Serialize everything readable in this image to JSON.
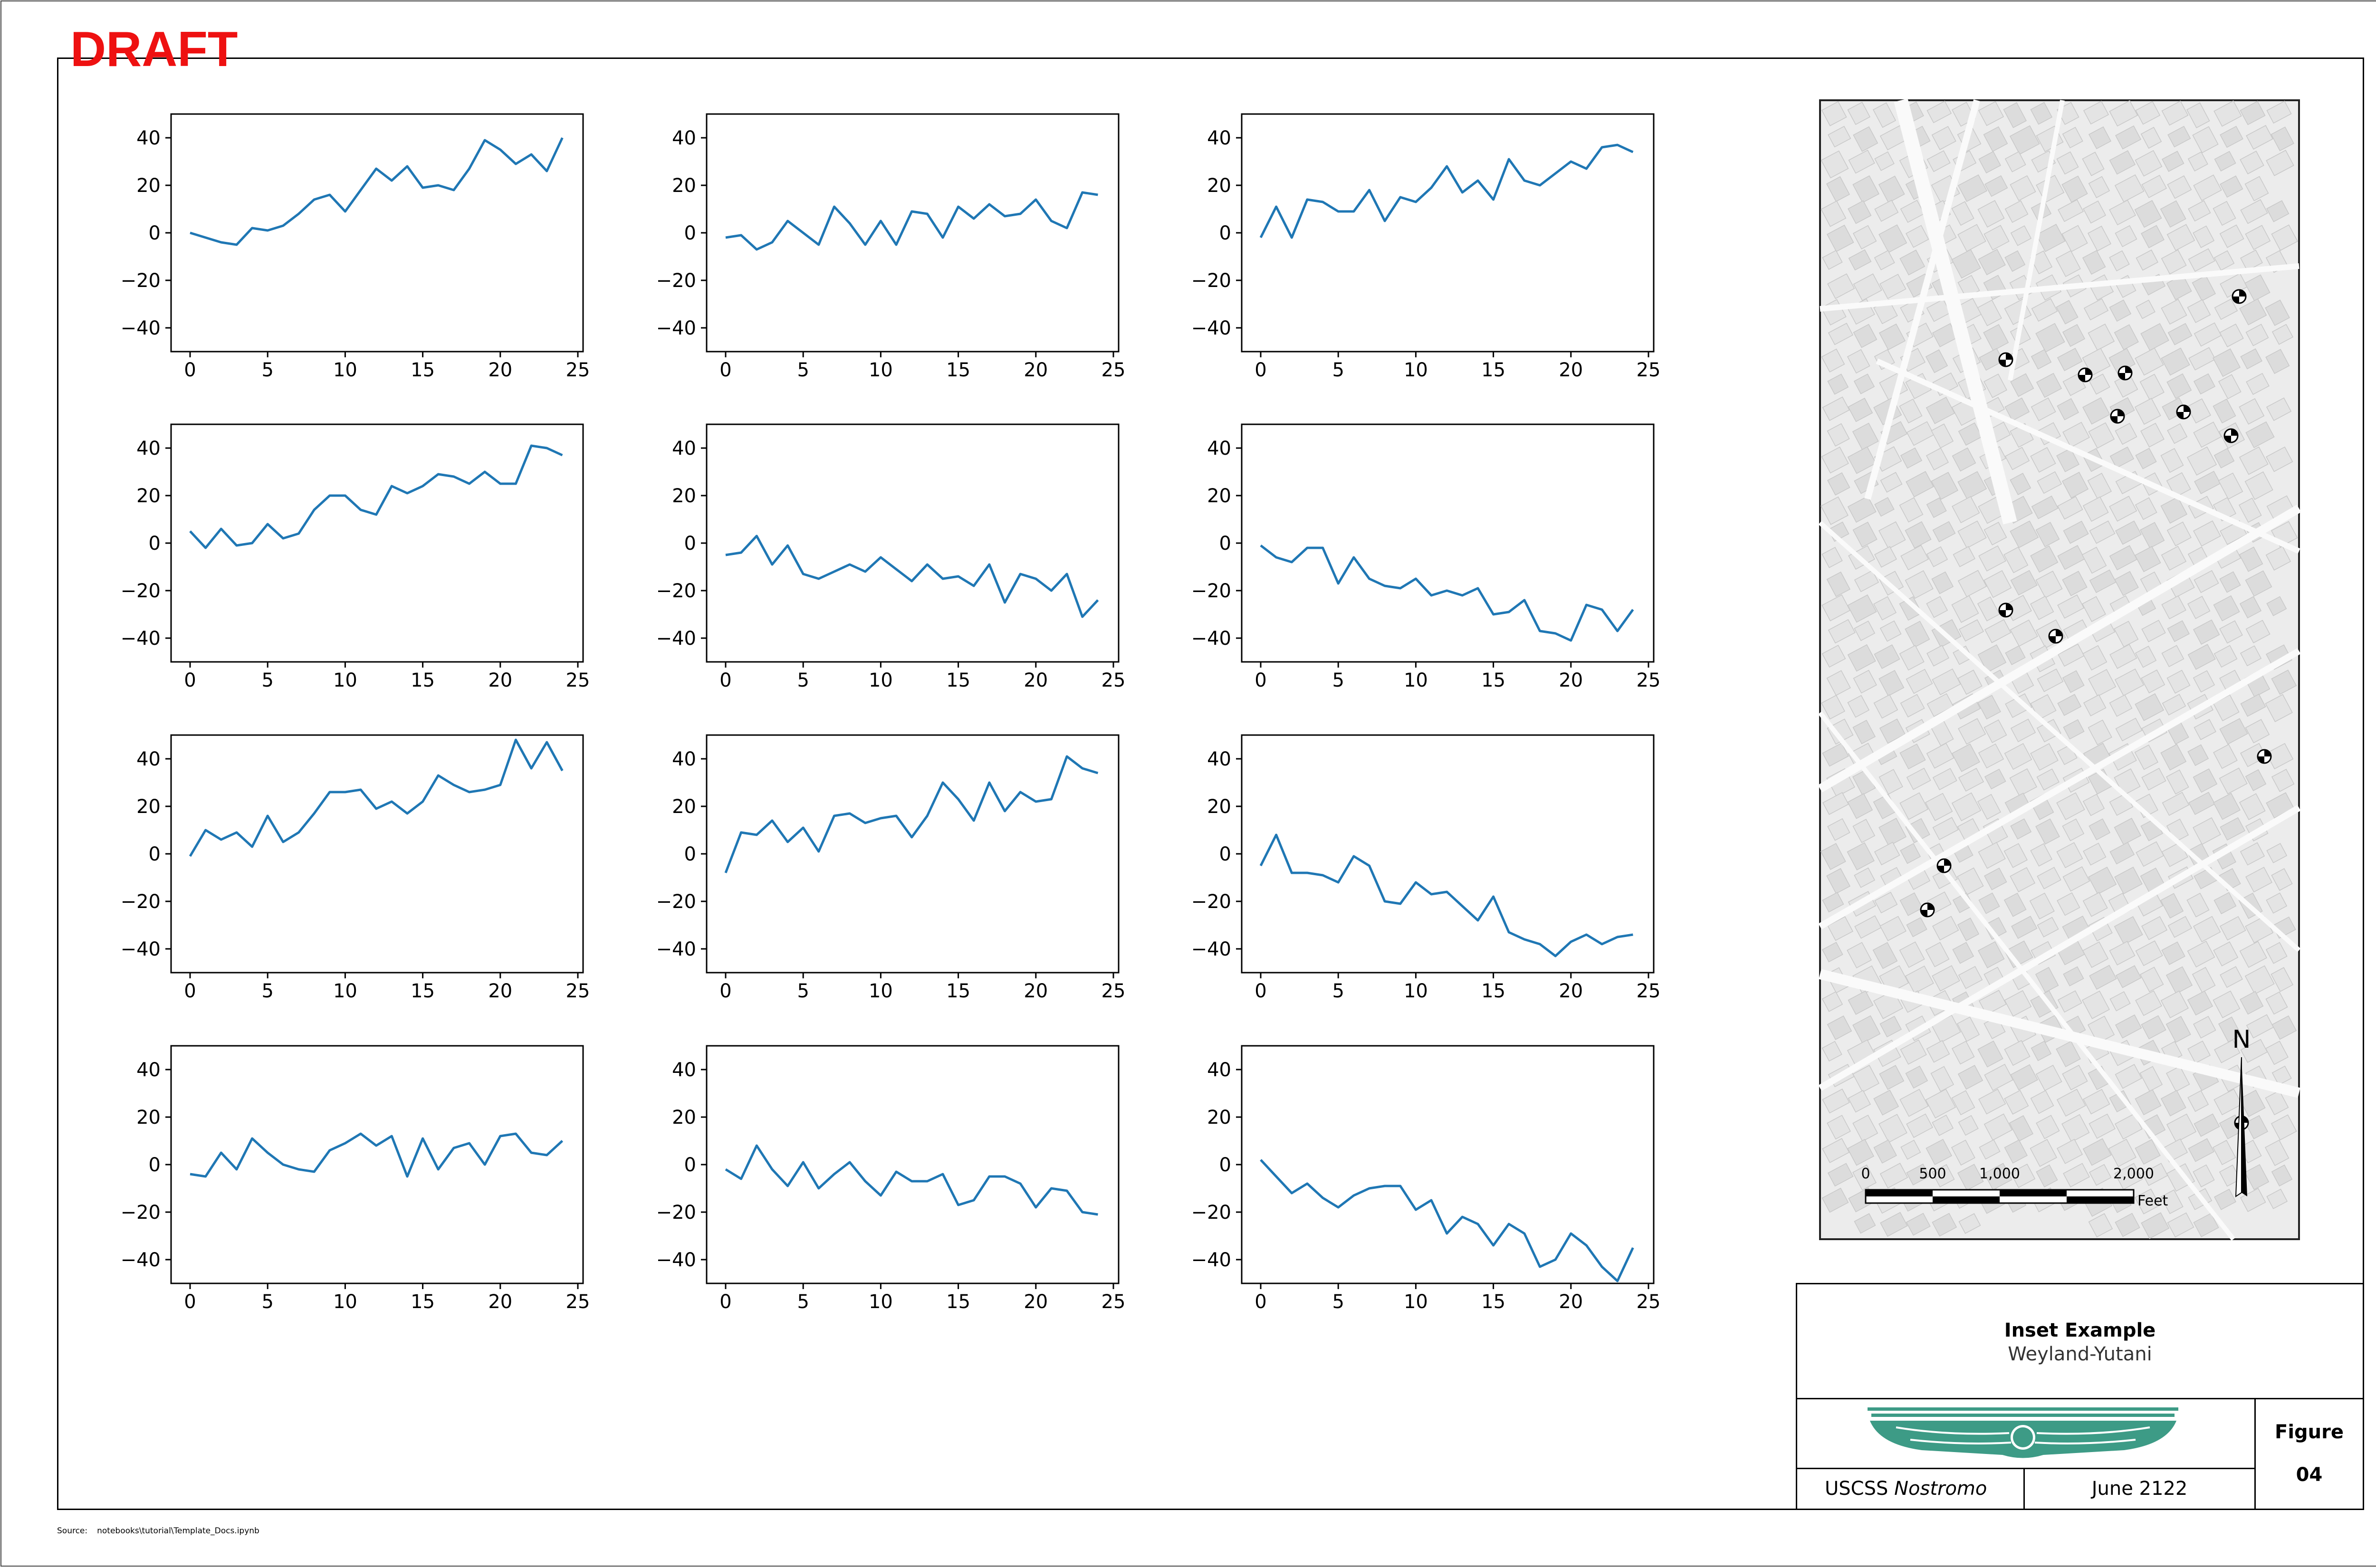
{
  "draft_label": "DRAFT",
  "source": {
    "label": "Source:",
    "path": "notebooks\\tutorial\\Template_Docs.ipynb"
  },
  "title_block": {
    "title": "Inset Example",
    "subtitle": "Weyland-Yutani",
    "ship_prefix": "USCSS ",
    "ship_name": "Nostromo",
    "date": "June 2122",
    "figure_label": "Figure",
    "figure_number": "04"
  },
  "colors": {
    "line": "#1f77b4",
    "draft": "#ee1111",
    "logo": "#3d9b86",
    "map_bg": "#ececec"
  },
  "map": {
    "north_label": "N",
    "scale_labels": [
      "0",
      "500",
      "1,000",
      "2,000"
    ],
    "scale_unit": "Feet",
    "marker_icon": "survey-marker-icon",
    "north_icon": "north-arrow-icon"
  },
  "chart_data": [
    {
      "type": "line",
      "xlim": [
        0,
        25
      ],
      "ylim": [
        -50,
        50
      ],
      "xticks": [
        0,
        5,
        10,
        15,
        20,
        25
      ],
      "yticks": [
        40,
        20,
        0,
        -20,
        -40
      ],
      "grid": false,
      "x": [
        0,
        1,
        2,
        3,
        4,
        5,
        6,
        7,
        8,
        9,
        10,
        11,
        12,
        13,
        14,
        15,
        16,
        17,
        18,
        19,
        20,
        21,
        22,
        23,
        24
      ],
      "values": [
        0,
        -2,
        -4,
        -5,
        2,
        1,
        3,
        8,
        14,
        16,
        9,
        18,
        27,
        22,
        28,
        19,
        20,
        18,
        27,
        39,
        35,
        29,
        33,
        26,
        40
      ]
    },
    {
      "type": "line",
      "xlim": [
        0,
        25
      ],
      "ylim": [
        -50,
        50
      ],
      "xticks": [
        0,
        5,
        10,
        15,
        20,
        25
      ],
      "yticks": [
        40,
        20,
        0,
        -20,
        -40
      ],
      "grid": false,
      "x": [
        0,
        1,
        2,
        3,
        4,
        5,
        6,
        7,
        8,
        9,
        10,
        11,
        12,
        13,
        14,
        15,
        16,
        17,
        18,
        19,
        20,
        21,
        22,
        23,
        24
      ],
      "values": [
        -2,
        -1,
        -7,
        -4,
        5,
        0,
        -5,
        11,
        4,
        -5,
        5,
        -5,
        9,
        8,
        -2,
        11,
        6,
        12,
        7,
        8,
        14,
        5,
        2,
        17,
        16
      ]
    },
    {
      "type": "line",
      "xlim": [
        0,
        25
      ],
      "ylim": [
        -50,
        50
      ],
      "xticks": [
        0,
        5,
        10,
        15,
        20,
        25
      ],
      "yticks": [
        40,
        20,
        0,
        -20,
        -40
      ],
      "grid": false,
      "x": [
        0,
        1,
        2,
        3,
        4,
        5,
        6,
        7,
        8,
        9,
        10,
        11,
        12,
        13,
        14,
        15,
        16,
        17,
        18,
        19,
        20,
        21,
        22,
        23,
        24
      ],
      "values": [
        -2,
        11,
        -2,
        14,
        13,
        9,
        9,
        18,
        5,
        15,
        13,
        19,
        28,
        17,
        22,
        14,
        31,
        22,
        20,
        25,
        30,
        27,
        36,
        37,
        34
      ]
    },
    {
      "type": "line",
      "xlim": [
        0,
        25
      ],
      "ylim": [
        -50,
        50
      ],
      "xticks": [
        0,
        5,
        10,
        15,
        20,
        25
      ],
      "yticks": [
        40,
        20,
        0,
        -20,
        -40
      ],
      "grid": false,
      "x": [
        0,
        1,
        2,
        3,
        4,
        5,
        6,
        7,
        8,
        9,
        10,
        11,
        12,
        13,
        14,
        15,
        16,
        17,
        18,
        19,
        20,
        21,
        22,
        23,
        24
      ],
      "values": [
        5,
        -2,
        6,
        -1,
        0,
        8,
        2,
        4,
        14,
        20,
        20,
        14,
        12,
        24,
        21,
        24,
        29,
        28,
        25,
        30,
        25,
        25,
        41,
        40,
        37
      ]
    },
    {
      "type": "line",
      "xlim": [
        0,
        25
      ],
      "ylim": [
        -50,
        50
      ],
      "xticks": [
        0,
        5,
        10,
        15,
        20,
        25
      ],
      "yticks": [
        40,
        20,
        0,
        -20,
        -40
      ],
      "grid": false,
      "x": [
        0,
        1,
        2,
        3,
        4,
        5,
        6,
        7,
        8,
        9,
        10,
        11,
        12,
        13,
        14,
        15,
        16,
        17,
        18,
        19,
        20,
        21,
        22,
        23,
        24
      ],
      "values": [
        -5,
        -4,
        3,
        -9,
        -1,
        -13,
        -15,
        -12,
        -9,
        -12,
        -6,
        -11,
        -16,
        -9,
        -15,
        -14,
        -18,
        -9,
        -25,
        -13,
        -15,
        -20,
        -13,
        -31,
        -24
      ]
    },
    {
      "type": "line",
      "xlim": [
        0,
        25
      ],
      "ylim": [
        -50,
        50
      ],
      "xticks": [
        0,
        5,
        10,
        15,
        20,
        25
      ],
      "yticks": [
        40,
        20,
        0,
        -20,
        -40
      ],
      "grid": false,
      "x": [
        0,
        1,
        2,
        3,
        4,
        5,
        6,
        7,
        8,
        9,
        10,
        11,
        12,
        13,
        14,
        15,
        16,
        17,
        18,
        19,
        20,
        21,
        22,
        23,
        24
      ],
      "values": [
        -1,
        -6,
        -8,
        -2,
        -2,
        -17,
        -6,
        -15,
        -18,
        -19,
        -15,
        -22,
        -20,
        -22,
        -19,
        -30,
        -29,
        -24,
        -37,
        -38,
        -41,
        -26,
        -28,
        -37,
        -28
      ]
    },
    {
      "type": "line",
      "xlim": [
        0,
        25
      ],
      "ylim": [
        -50,
        50
      ],
      "xticks": [
        0,
        5,
        10,
        15,
        20,
        25
      ],
      "yticks": [
        40,
        20,
        0,
        -20,
        -40
      ],
      "grid": false,
      "x": [
        0,
        1,
        2,
        3,
        4,
        5,
        6,
        7,
        8,
        9,
        10,
        11,
        12,
        13,
        14,
        15,
        16,
        17,
        18,
        19,
        20,
        21,
        22,
        23,
        24
      ],
      "values": [
        -1,
        10,
        6,
        9,
        3,
        16,
        5,
        9,
        17,
        26,
        26,
        27,
        19,
        22,
        17,
        22,
        33,
        29,
        26,
        27,
        29,
        48,
        36,
        47,
        35
      ]
    },
    {
      "type": "line",
      "xlim": [
        0,
        25
      ],
      "ylim": [
        -50,
        50
      ],
      "xticks": [
        0,
        5,
        10,
        15,
        20,
        25
      ],
      "yticks": [
        40,
        20,
        0,
        -20,
        -40
      ],
      "grid": false,
      "x": [
        0,
        1,
        2,
        3,
        4,
        5,
        6,
        7,
        8,
        9,
        10,
        11,
        12,
        13,
        14,
        15,
        16,
        17,
        18,
        19,
        20,
        21,
        22,
        23,
        24
      ],
      "values": [
        -8,
        9,
        8,
        14,
        5,
        11,
        1,
        16,
        17,
        13,
        15,
        16,
        7,
        16,
        30,
        23,
        14,
        30,
        18,
        26,
        22,
        23,
        41,
        36,
        34
      ]
    },
    {
      "type": "line",
      "xlim": [
        0,
        25
      ],
      "ylim": [
        -50,
        50
      ],
      "xticks": [
        0,
        5,
        10,
        15,
        20,
        25
      ],
      "yticks": [
        40,
        20,
        0,
        -20,
        -40
      ],
      "grid": false,
      "x": [
        0,
        1,
        2,
        3,
        4,
        5,
        6,
        7,
        8,
        9,
        10,
        11,
        12,
        13,
        14,
        15,
        16,
        17,
        18,
        19,
        20,
        21,
        22,
        23,
        24
      ],
      "values": [
        -5,
        8,
        -8,
        -8,
        -9,
        -12,
        -1,
        -5,
        -20,
        -21,
        -12,
        -17,
        -16,
        -22,
        -28,
        -18,
        -33,
        -36,
        -38,
        -43,
        -37,
        -34,
        -38,
        -35,
        -34
      ]
    },
    {
      "type": "line",
      "xlim": [
        0,
        25
      ],
      "ylim": [
        -50,
        50
      ],
      "xticks": [
        0,
        5,
        10,
        15,
        20,
        25
      ],
      "yticks": [
        40,
        20,
        0,
        -20,
        -40
      ],
      "grid": false,
      "x": [
        0,
        1,
        2,
        3,
        4,
        5,
        6,
        7,
        8,
        9,
        10,
        11,
        12,
        13,
        14,
        15,
        16,
        17,
        18,
        19,
        20,
        21,
        22,
        23,
        24
      ],
      "values": [
        -4,
        -5,
        5,
        -2,
        11,
        5,
        0,
        -2,
        -3,
        6,
        9,
        13,
        8,
        12,
        -5,
        11,
        -2,
        7,
        9,
        0,
        12,
        13,
        5,
        4,
        10
      ]
    },
    {
      "type": "line",
      "xlim": [
        0,
        25
      ],
      "ylim": [
        -50,
        50
      ],
      "xticks": [
        0,
        5,
        10,
        15,
        20,
        25
      ],
      "yticks": [
        40,
        20,
        0,
        -20,
        -40
      ],
      "grid": false,
      "x": [
        0,
        1,
        2,
        3,
        4,
        5,
        6,
        7,
        8,
        9,
        10,
        11,
        12,
        13,
        14,
        15,
        16,
        17,
        18,
        19,
        20,
        21,
        22,
        23,
        24
      ],
      "values": [
        -2,
        -6,
        8,
        -2,
        -9,
        1,
        -10,
        -4,
        1,
        -7,
        -13,
        -3,
        -7,
        -7,
        -4,
        -17,
        -15,
        -5,
        -5,
        -8,
        -18,
        -10,
        -11,
        -20,
        -21
      ]
    },
    {
      "type": "line",
      "xlim": [
        0,
        25
      ],
      "ylim": [
        -50,
        50
      ],
      "xticks": [
        0,
        5,
        10,
        15,
        20,
        25
      ],
      "yticks": [
        40,
        20,
        0,
        -20,
        -40
      ],
      "grid": false,
      "x": [
        0,
        1,
        2,
        3,
        4,
        5,
        6,
        7,
        8,
        9,
        10,
        11,
        12,
        13,
        14,
        15,
        16,
        17,
        18,
        19,
        20,
        21,
        22,
        23,
        24
      ],
      "values": [
        2,
        -5,
        -12,
        -8,
        -14,
        -18,
        -13,
        -10,
        -9,
        -9,
        -19,
        -15,
        -29,
        -22,
        -25,
        -34,
        -25,
        -29,
        -43,
        -40,
        -29,
        -34,
        -43,
        -49,
        -35
      ]
    }
  ]
}
